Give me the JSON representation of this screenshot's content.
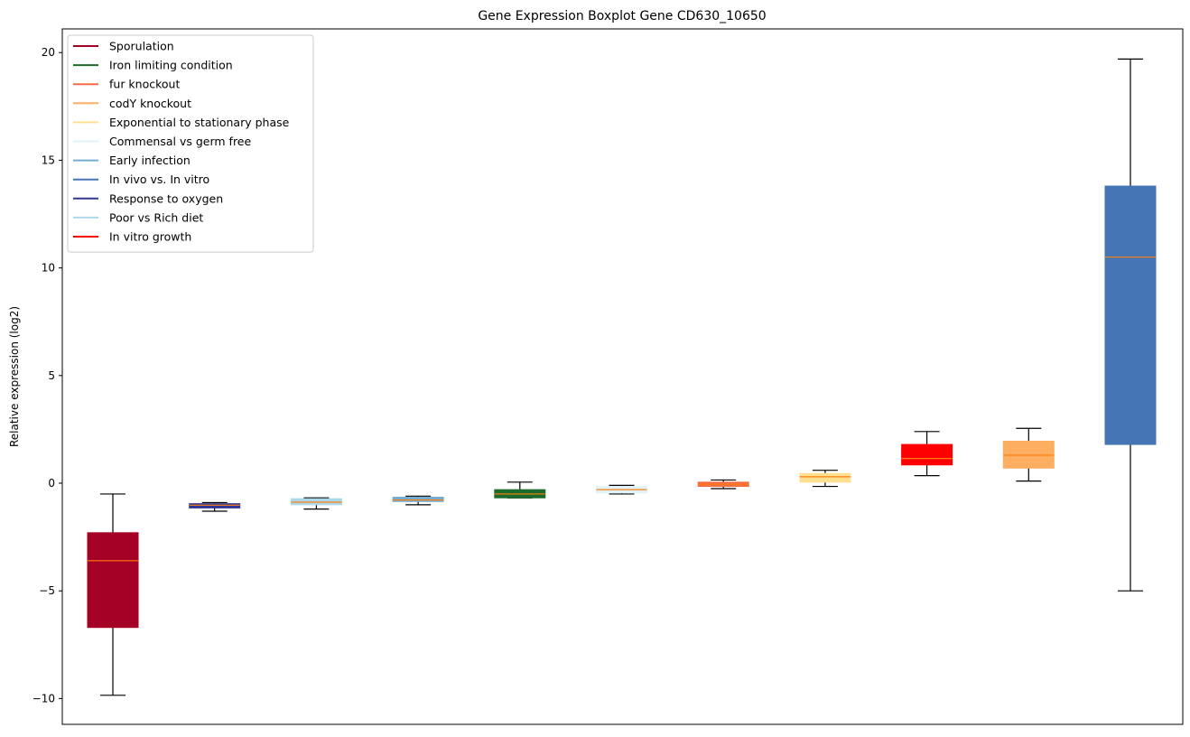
{
  "chart_data": {
    "type": "boxplot",
    "title": "Gene Expression Boxplot Gene CD630_10650",
    "xlabel": "",
    "ylabel": "Relative expression (log2)",
    "ylim": [
      -11.2,
      21.1
    ],
    "yticks": [
      -10,
      -5,
      0,
      5,
      10,
      15,
      20
    ],
    "ytick_labels": [
      "−10",
      "−5",
      "0",
      "5",
      "10",
      "15",
      "20"
    ],
    "grid": false,
    "legend_position": "top-left",
    "legend": [
      {
        "label": "Sporulation",
        "color": "#a50026"
      },
      {
        "label": "Iron limiting condition",
        "color": "#1b6b2a"
      },
      {
        "label": "fur knockout",
        "color": "#f46d43"
      },
      {
        "label": "codY knockout",
        "color": "#fdae61"
      },
      {
        "label": "Exponential to stationary phase",
        "color": "#fee090"
      },
      {
        "label": "Commensal vs germ free",
        "color": "#e0f3f8"
      },
      {
        "label": "Early infection",
        "color": "#74add1"
      },
      {
        "label": "In vivo vs. In vitro",
        "color": "#4575b4"
      },
      {
        "label": "Response to oxygen",
        "color": "#313695"
      },
      {
        "label": "Poor vs Rich diet",
        "color": "#abd9e9"
      },
      {
        "label": "In vitro growth",
        "color": "#ff0000"
      }
    ],
    "boxes": [
      {
        "series": "Sporulation",
        "color": "#a50026",
        "whisker_low": -9.85,
        "q1": -6.7,
        "median": -3.6,
        "q3": -2.3,
        "whisker_high": -0.5
      },
      {
        "series": "Response to oxygen",
        "color": "#313695",
        "whisker_low": -1.3,
        "q1": -1.15,
        "median": -1.02,
        "q3": -0.95,
        "whisker_high": -0.9
      },
      {
        "series": "Poor vs Rich diet",
        "color": "#abd9e9",
        "whisker_low": -1.2,
        "q1": -1.0,
        "median": -0.88,
        "q3": -0.72,
        "whisker_high": -0.68
      },
      {
        "series": "Early infection",
        "color": "#74add1",
        "whisker_low": -1.0,
        "q1": -0.85,
        "median": -0.78,
        "q3": -0.65,
        "whisker_high": -0.6
      },
      {
        "series": "Iron limiting condition",
        "color": "#1b6b2a",
        "whisker_low": -0.68,
        "q1": -0.68,
        "median": -0.5,
        "q3": -0.3,
        "whisker_high": 0.05
      },
      {
        "series": "Commensal vs germ free",
        "color": "#e0f3f8",
        "whisker_low": -0.5,
        "q1": -0.45,
        "median": -0.3,
        "q3": -0.15,
        "whisker_high": -0.1
      },
      {
        "series": "fur knockout",
        "color": "#f46d43",
        "whisker_low": -0.25,
        "q1": -0.15,
        "median": -0.05,
        "q3": 0.05,
        "whisker_high": 0.15
      },
      {
        "series": "Exponential to stationary phase",
        "color": "#fee090",
        "whisker_low": -0.15,
        "q1": 0.05,
        "median": 0.3,
        "q3": 0.45,
        "whisker_high": 0.6
      },
      {
        "series": "In vitro growth",
        "color": "#ff0000",
        "whisker_low": 0.35,
        "q1": 0.85,
        "median": 1.15,
        "q3": 1.8,
        "whisker_high": 2.4
      },
      {
        "series": "codY knockout",
        "color": "#fdae61",
        "whisker_low": 0.1,
        "q1": 0.7,
        "median": 1.3,
        "q3": 1.95,
        "whisker_high": 2.55
      },
      {
        "series": "In vivo vs. In vitro",
        "color": "#4575b4",
        "whisker_low": -5.0,
        "q1": 1.8,
        "median": 10.5,
        "q3": 13.8,
        "whisker_high": 19.7
      }
    ]
  }
}
